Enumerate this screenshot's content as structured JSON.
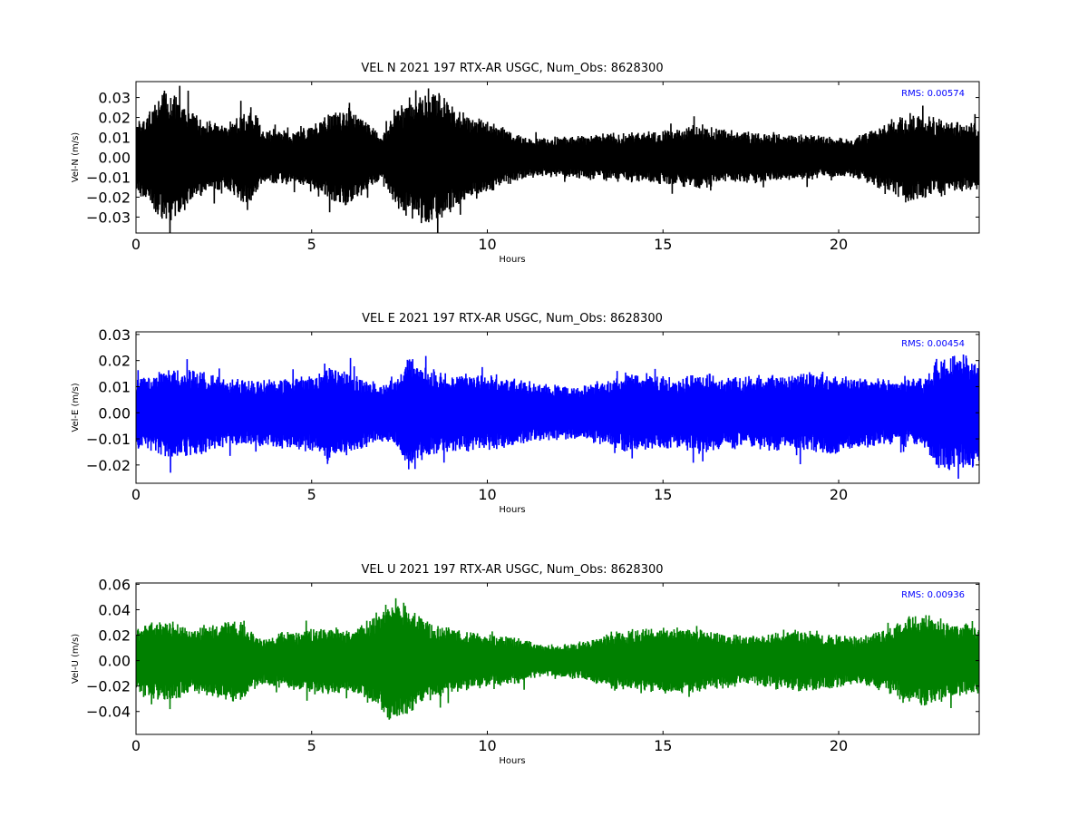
{
  "chart_data": [
    {
      "type": "line",
      "title": "VEL N 2021 197 RTX-AR  USGC, Num_Obs: 8628300",
      "xlabel": "Hours",
      "ylabel": "Vel-N (m/s)",
      "xlim": [
        0,
        24
      ],
      "ylim": [
        -0.038,
        0.038
      ],
      "xticks": [
        0,
        5,
        10,
        15,
        20
      ],
      "xtick_labels": [
        "0",
        "5",
        "10",
        "15",
        "20"
      ],
      "yticks": [
        0.03,
        0.02,
        0.01,
        0.0,
        -0.01,
        -0.02,
        -0.03
      ],
      "ytick_labels": [
        "0.03",
        "0.02",
        "0.01",
        "0.00",
        "−0.01",
        "−0.02",
        "−0.03"
      ],
      "rms_label": "RMS:  0.00574",
      "color": "#000000",
      "grid": false,
      "envelope": {
        "hours": [
          0,
          0.5,
          0.8,
          1.2,
          1.6,
          2.0,
          2.6,
          3.0,
          3.3,
          3.6,
          4.5,
          5.0,
          5.5,
          6.0,
          6.5,
          7.0,
          7.3,
          7.8,
          8.2,
          8.6,
          9.0,
          9.6,
          10.2,
          11.0,
          11.3,
          12.0,
          13.0,
          14.0,
          15.0,
          15.5,
          16.0,
          16.5,
          17.0,
          18.0,
          19.0,
          19.8,
          20.3,
          21.0,
          21.5,
          22.0,
          22.5,
          23.0,
          24.0
        ],
        "amplitude": [
          0.016,
          0.026,
          0.033,
          0.029,
          0.022,
          0.018,
          0.016,
          0.022,
          0.024,
          0.013,
          0.013,
          0.016,
          0.022,
          0.024,
          0.019,
          0.01,
          0.022,
          0.03,
          0.034,
          0.031,
          0.026,
          0.02,
          0.016,
          0.011,
          0.009,
          0.01,
          0.011,
          0.012,
          0.013,
          0.014,
          0.016,
          0.014,
          0.013,
          0.012,
          0.011,
          0.01,
          0.009,
          0.014,
          0.018,
          0.022,
          0.02,
          0.018,
          0.016
        ]
      }
    },
    {
      "type": "line",
      "title": "VEL E 2021 197 RTX-AR  USGC, Num_Obs: 8628300",
      "xlabel": "Hours",
      "ylabel": "Vel-E (m/s)",
      "xlim": [
        0,
        24
      ],
      "ylim": [
        -0.027,
        0.031
      ],
      "xticks": [
        0,
        5,
        10,
        15,
        20
      ],
      "xtick_labels": [
        "0",
        "5",
        "10",
        "15",
        "20"
      ],
      "yticks": [
        0.03,
        0.02,
        0.01,
        0.0,
        -0.01,
        -0.02
      ],
      "ytick_labels": [
        "0.03",
        "0.02",
        "0.01",
        "0.00",
        "−0.01",
        "−0.02"
      ],
      "rms_label": "RMS:  0.00454",
      "color": "#0000ff",
      "grid": false,
      "envelope": {
        "hours": [
          0,
          0.6,
          1.0,
          1.6,
          2.2,
          3.0,
          4.0,
          5.0,
          5.4,
          6.0,
          6.8,
          7.4,
          7.7,
          8.0,
          8.6,
          9.5,
          10.5,
          11.5,
          12.5,
          13.5,
          14.0,
          14.8,
          15.5,
          16.0,
          17.0,
          18.0,
          19.0,
          19.6,
          20.5,
          21.5,
          22.5,
          22.8,
          23.2,
          24.0
        ],
        "amplitude": [
          0.013,
          0.015,
          0.018,
          0.016,
          0.014,
          0.012,
          0.013,
          0.014,
          0.018,
          0.016,
          0.011,
          0.012,
          0.021,
          0.019,
          0.015,
          0.014,
          0.013,
          0.011,
          0.01,
          0.012,
          0.015,
          0.014,
          0.013,
          0.015,
          0.013,
          0.014,
          0.015,
          0.016,
          0.013,
          0.012,
          0.013,
          0.02,
          0.022,
          0.02
        ]
      }
    },
    {
      "type": "line",
      "title": "VEL U 2021 197 RTX-AR  USGC, Num_Obs: 8628300",
      "xlabel": "Hours",
      "ylabel": "Vel-U (m/s)",
      "xlim": [
        0,
        24
      ],
      "ylim": [
        -0.058,
        0.061
      ],
      "xticks": [
        0,
        5,
        10,
        15,
        20
      ],
      "xtick_labels": [
        "0",
        "5",
        "10",
        "15",
        "20"
      ],
      "yticks": [
        0.06,
        0.04,
        0.02,
        0.0,
        -0.02,
        -0.04
      ],
      "ytick_labels": [
        "0.06",
        "0.04",
        "0.02",
        "0.00",
        "−0.02",
        "−0.04"
      ],
      "rms_label": "RMS:  0.00936",
      "color": "#008000",
      "grid": false,
      "envelope": {
        "hours": [
          0,
          0.5,
          1.0,
          1.6,
          2.3,
          3.0,
          3.5,
          4.0,
          4.8,
          5.5,
          6.2,
          6.8,
          7.3,
          7.8,
          8.3,
          9.0,
          10.0,
          11.0,
          11.6,
          12.5,
          13.0,
          13.5,
          14.5,
          15.5,
          16.5,
          17.5,
          18.5,
          19.5,
          20.5,
          21.5,
          22.0,
          22.5,
          23.0,
          24.0
        ],
        "amplitude": [
          0.026,
          0.03,
          0.032,
          0.024,
          0.03,
          0.032,
          0.018,
          0.02,
          0.024,
          0.026,
          0.024,
          0.036,
          0.048,
          0.04,
          0.03,
          0.024,
          0.02,
          0.017,
          0.012,
          0.014,
          0.016,
          0.022,
          0.025,
          0.026,
          0.022,
          0.018,
          0.024,
          0.022,
          0.018,
          0.026,
          0.034,
          0.036,
          0.03,
          0.026
        ]
      }
    }
  ]
}
